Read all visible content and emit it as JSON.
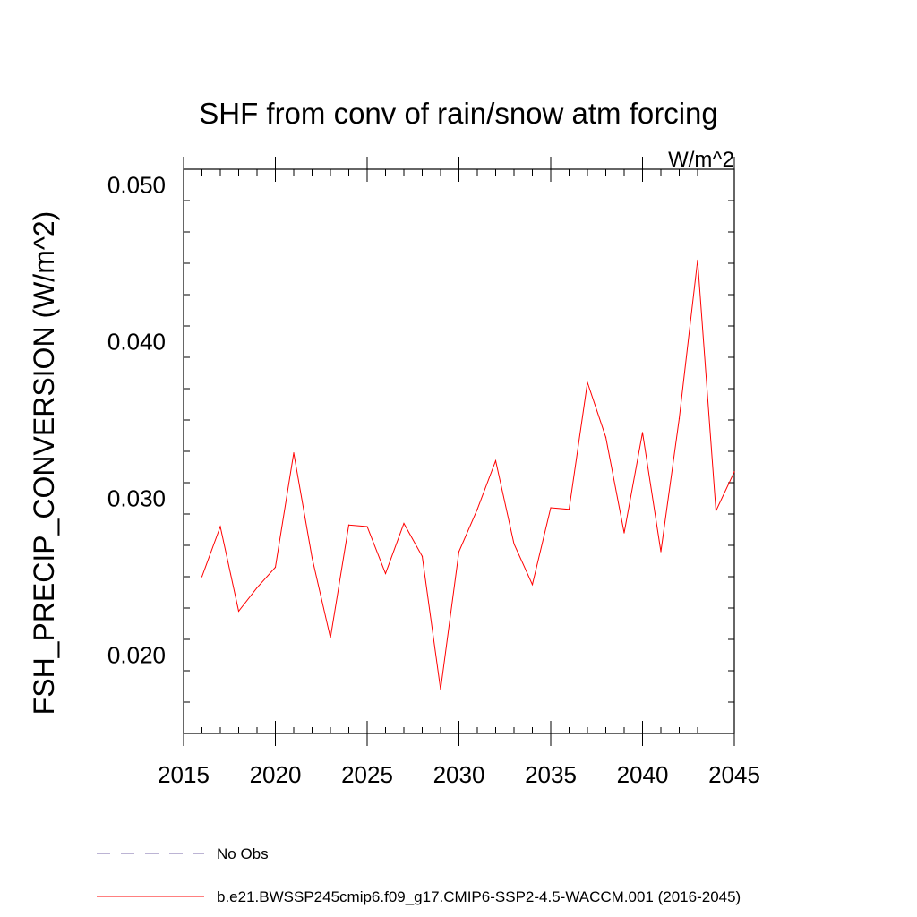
{
  "chart_data": {
    "type": "line",
    "title": "SHF from conv of rain/snow atm forcing",
    "units_label": "W/m^2",
    "ylabel": "FSH_PRECIP_CONVERSION  (W/m^2)",
    "xlabel": "",
    "xlim": [
      2015,
      2045
    ],
    "ylim": [
      0.015,
      0.051
    ],
    "x_ticks": [
      2015,
      2020,
      2025,
      2030,
      2035,
      2040,
      2045
    ],
    "x_tick_labels": [
      "2015",
      "2020",
      "2025",
      "2030",
      "2035",
      "2040",
      "2045"
    ],
    "y_ticks": [
      0.02,
      0.03,
      0.04,
      0.05
    ],
    "y_tick_labels": [
      "0.020",
      "0.030",
      "0.040",
      "0.050"
    ],
    "grid": false,
    "legend_position": "bottom",
    "series": [
      {
        "name": "b.e21.BWSSP245cmip6.f09_g17.CMIP6-SSP2-4.5-WACCM.001 (2016-2045)",
        "color": "#ff0000",
        "x": [
          2016,
          2017,
          2018,
          2019,
          2020,
          2021,
          2022,
          2023,
          2024,
          2025,
          2026,
          2027,
          2028,
          2029,
          2030,
          2031,
          2032,
          2033,
          2034,
          2035,
          2036,
          2037,
          2038,
          2039,
          2040,
          2041,
          2042,
          2043,
          2044,
          2045
        ],
        "y": [
          0.025,
          0.0282,
          0.0228,
          0.0243,
          0.0256,
          0.0329,
          0.0262,
          0.0211,
          0.0283,
          0.0282,
          0.0252,
          0.0284,
          0.0263,
          0.0178,
          0.0266,
          0.0293,
          0.0324,
          0.0271,
          0.0245,
          0.0294,
          0.0293,
          0.0374,
          0.0339,
          0.0278,
          0.0342,
          0.0266,
          0.0351,
          0.0452,
          0.0292,
          0.0317
        ]
      }
    ],
    "legend": [
      {
        "label": "No Obs",
        "style": "dashed",
        "color": "#7a6aa8"
      },
      {
        "label": "b.e21.BWSSP245cmip6.f09_g17.CMIP6-SSP2-4.5-WACCM.001 (2016-2045)",
        "style": "solid",
        "color": "#ff0000"
      }
    ]
  }
}
